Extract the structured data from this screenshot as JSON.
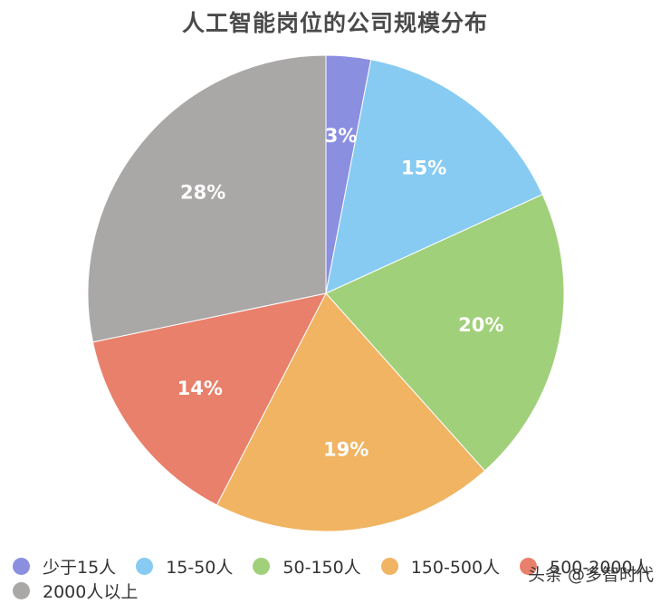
{
  "chart_data": {
    "type": "pie",
    "title": "人工智能岗位的公司规模分布",
    "categories": [
      "少于15人",
      "15-50人",
      "50-150人",
      "150-500人",
      "500-2000人",
      "2000人以上"
    ],
    "values": [
      3,
      15,
      20,
      19,
      14,
      28
    ],
    "labels": [
      "3%",
      "15%",
      "20%",
      "19%",
      "14%",
      "28%"
    ],
    "colors": [
      "#8b8fe0",
      "#87cbf2",
      "#a1d07a",
      "#f0b462",
      "#e9806b",
      "#aaa7a7"
    ],
    "legend_position": "bottom-left",
    "start_angle": "top",
    "direction": "clockwise"
  },
  "legend": {
    "rows": [
      [
        0,
        1,
        2,
        3,
        4
      ],
      [
        5
      ]
    ]
  },
  "watermark": "头条 @多智时代"
}
